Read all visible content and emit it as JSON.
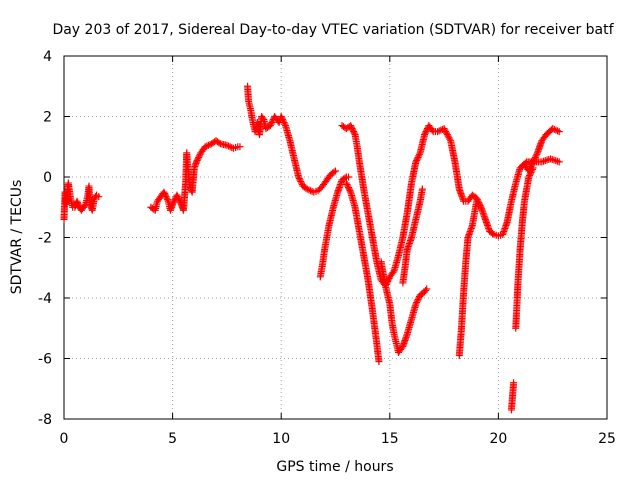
{
  "chart_data": {
    "type": "scatter",
    "title": "Day 203 of 2017, Sidereal Day-to-day VTEC variation (SDTVAR) for receiver batf",
    "xlabel": "GPS time / hours",
    "ylabel": "SDTVAR / TECUs",
    "xlim": [
      0,
      25
    ],
    "ylim": [
      -8,
      4
    ],
    "xticks": [
      0,
      5,
      10,
      15,
      20,
      25
    ],
    "yticks": [
      -8,
      -6,
      -4,
      -2,
      0,
      2,
      4
    ],
    "grid": true,
    "marker": "+",
    "color": "#ff0000",
    "series": [
      {
        "name": "SDTVAR",
        "points": [
          [
            0.0,
            -1.4
          ],
          [
            0.05,
            -0.5
          ],
          [
            0.1,
            -0.9
          ],
          [
            0.2,
            -0.2
          ],
          [
            0.3,
            -0.7
          ],
          [
            0.4,
            -1.0
          ],
          [
            0.5,
            -1.0
          ],
          [
            0.6,
            -0.8
          ],
          [
            0.7,
            -1.0
          ],
          [
            0.8,
            -1.1
          ],
          [
            0.9,
            -1.0
          ],
          [
            1.0,
            -0.9
          ],
          [
            1.1,
            -0.6
          ],
          [
            1.15,
            -0.3
          ],
          [
            1.2,
            -0.9
          ],
          [
            1.3,
            -1.1
          ],
          [
            1.4,
            -0.7
          ],
          [
            1.5,
            -0.6
          ],
          [
            1.6,
            -0.65
          ],
          [
            4.0,
            -1.0
          ],
          [
            4.2,
            -1.1
          ],
          [
            4.3,
            -0.8
          ],
          [
            4.5,
            -0.6
          ],
          [
            4.6,
            -0.5
          ],
          [
            4.8,
            -0.8
          ],
          [
            4.9,
            -1.1
          ],
          [
            5.0,
            -0.9
          ],
          [
            5.2,
            -0.6
          ],
          [
            5.4,
            -0.9
          ],
          [
            5.5,
            -1.1
          ],
          [
            5.6,
            -0.2
          ],
          [
            5.65,
            0.8
          ],
          [
            5.7,
            0.3
          ],
          [
            5.8,
            -0.3
          ],
          [
            5.9,
            -0.5
          ],
          [
            6.0,
            0.3
          ],
          [
            6.1,
            0.5
          ],
          [
            6.3,
            0.8
          ],
          [
            6.5,
            1.0
          ],
          [
            6.8,
            1.1
          ],
          [
            7.0,
            1.2
          ],
          [
            7.2,
            1.1
          ],
          [
            7.5,
            1.05
          ],
          [
            7.8,
            0.95
          ],
          [
            8.0,
            1.0
          ],
          [
            8.1,
            1.0
          ],
          [
            8.45,
            3.0
          ],
          [
            8.5,
            2.5
          ],
          [
            8.6,
            2.2
          ],
          [
            8.7,
            1.8
          ],
          [
            8.8,
            1.5
          ],
          [
            8.9,
            1.8
          ],
          [
            9.0,
            1.4
          ],
          [
            9.1,
            2.0
          ],
          [
            9.2,
            1.9
          ],
          [
            9.3,
            1.6
          ],
          [
            9.5,
            1.7
          ],
          [
            9.7,
            2.0
          ],
          [
            9.9,
            1.8
          ],
          [
            10.0,
            2.0
          ],
          [
            10.2,
            1.7
          ],
          [
            10.4,
            1.2
          ],
          [
            10.6,
            0.6
          ],
          [
            10.8,
            0.0
          ],
          [
            11.0,
            -0.3
          ],
          [
            11.2,
            -0.4
          ],
          [
            11.5,
            -0.5
          ],
          [
            11.7,
            -0.45
          ],
          [
            11.9,
            -0.3
          ],
          [
            12.1,
            -0.1
          ],
          [
            12.3,
            0.1
          ],
          [
            12.5,
            0.2
          ],
          [
            11.8,
            -3.3
          ],
          [
            11.9,
            -2.9
          ],
          [
            12.0,
            -2.4
          ],
          [
            12.1,
            -2.0
          ],
          [
            12.2,
            -1.6
          ],
          [
            12.4,
            -1.0
          ],
          [
            12.6,
            -0.5
          ],
          [
            12.8,
            -0.1
          ],
          [
            13.0,
            0.0
          ],
          [
            13.1,
            0.0
          ],
          [
            12.8,
            1.7
          ],
          [
            13.0,
            1.6
          ],
          [
            13.2,
            1.7
          ],
          [
            13.4,
            1.4
          ],
          [
            13.5,
            1.0
          ],
          [
            13.6,
            0.5
          ],
          [
            13.8,
            -0.4
          ],
          [
            14.0,
            -1.2
          ],
          [
            14.2,
            -2.0
          ],
          [
            14.4,
            -2.8
          ],
          [
            14.6,
            -3.4
          ],
          [
            14.8,
            -3.6
          ],
          [
            15.0,
            -3.3
          ],
          [
            15.2,
            -3.1
          ],
          [
            15.4,
            -2.6
          ],
          [
            15.6,
            -2.0
          ],
          [
            15.8,
            -1.2
          ],
          [
            16.0,
            -0.2
          ],
          [
            16.2,
            0.5
          ],
          [
            16.4,
            0.8
          ],
          [
            16.6,
            1.4
          ],
          [
            16.8,
            1.7
          ],
          [
            17.0,
            1.5
          ],
          [
            17.2,
            1.5
          ],
          [
            17.5,
            1.6
          ],
          [
            17.8,
            1.2
          ],
          [
            18.0,
            0.5
          ],
          [
            18.2,
            -0.4
          ],
          [
            18.4,
            -0.8
          ],
          [
            18.6,
            -0.8
          ],
          [
            18.8,
            -0.6
          ],
          [
            19.0,
            -0.7
          ],
          [
            19.2,
            -1.0
          ],
          [
            19.4,
            -1.4
          ],
          [
            19.6,
            -1.8
          ],
          [
            19.8,
            -1.9
          ],
          [
            20.0,
            -1.95
          ],
          [
            20.2,
            -1.9
          ],
          [
            20.4,
            -1.5
          ],
          [
            20.6,
            -0.8
          ],
          [
            20.8,
            -0.2
          ],
          [
            21.0,
            0.3
          ],
          [
            21.3,
            0.5
          ],
          [
            21.6,
            0.5
          ],
          [
            22.0,
            0.5
          ],
          [
            22.4,
            0.6
          ],
          [
            22.8,
            0.5
          ],
          [
            21.2,
            0.4
          ],
          [
            21.4,
            0.2
          ],
          [
            21.6,
            0.5
          ],
          [
            21.8,
            0.8
          ],
          [
            22.0,
            1.2
          ],
          [
            22.2,
            1.4
          ],
          [
            22.5,
            1.6
          ],
          [
            22.8,
            1.5
          ],
          [
            13.0,
            -0.2
          ],
          [
            13.2,
            -0.5
          ],
          [
            13.4,
            -1.0
          ],
          [
            13.6,
            -1.8
          ],
          [
            13.8,
            -2.6
          ],
          [
            14.0,
            -3.4
          ],
          [
            14.2,
            -4.4
          ],
          [
            14.4,
            -5.5
          ],
          [
            14.5,
            -6.1
          ],
          [
            14.6,
            -2.8
          ],
          [
            14.8,
            -3.6
          ],
          [
            15.0,
            -4.2
          ],
          [
            15.1,
            -4.8
          ],
          [
            15.2,
            -5.2
          ],
          [
            15.3,
            -5.5
          ],
          [
            15.4,
            -5.8
          ],
          [
            15.6,
            -5.6
          ],
          [
            15.8,
            -5.2
          ],
          [
            16.0,
            -4.7
          ],
          [
            16.2,
            -4.2
          ],
          [
            16.4,
            -3.9
          ],
          [
            16.6,
            -3.8
          ],
          [
            16.7,
            -3.7
          ],
          [
            15.6,
            -3.5
          ],
          [
            15.7,
            -3.0
          ],
          [
            15.8,
            -2.4
          ],
          [
            16.0,
            -2.0
          ],
          [
            16.2,
            -1.4
          ],
          [
            16.4,
            -0.8
          ],
          [
            16.5,
            -0.4
          ],
          [
            18.2,
            -5.9
          ],
          [
            18.3,
            -5.0
          ],
          [
            18.4,
            -3.8
          ],
          [
            18.5,
            -2.8
          ],
          [
            18.6,
            -2.0
          ],
          [
            18.8,
            -1.6
          ],
          [
            18.9,
            -1.2
          ],
          [
            19.0,
            -0.8
          ],
          [
            20.6,
            -7.7
          ],
          [
            20.7,
            -6.8
          ],
          [
            20.8,
            -5.0
          ],
          [
            20.9,
            -3.5
          ],
          [
            21.0,
            -2.4
          ],
          [
            21.1,
            -1.5
          ],
          [
            21.2,
            -0.8
          ],
          [
            21.4,
            0.0
          ],
          [
            21.6,
            0.3
          ]
        ]
      }
    ]
  }
}
